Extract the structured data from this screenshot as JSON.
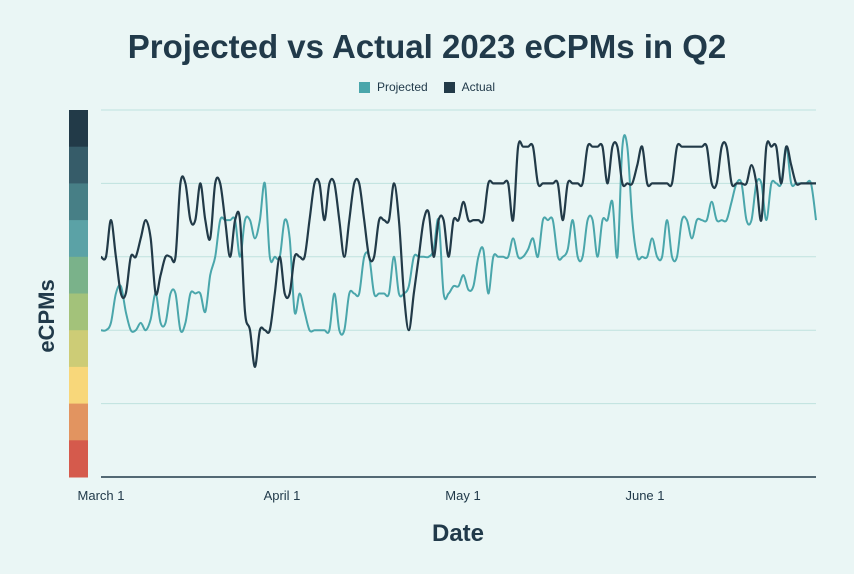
{
  "chart_data": {
    "type": "line",
    "title": "Projected vs Actual 2023 eCPMs in Q2",
    "xlabel": "Date",
    "ylabel": "eCPMs",
    "x_ticks": [
      "March 1",
      "April 1",
      "May 1",
      "June 1"
    ],
    "y_range": [
      0,
      10
    ],
    "legend_position": "top-center",
    "grid": "horizontal",
    "color_scale": [
      "#223a48",
      "#365c69",
      "#477f86",
      "#5ba2a6",
      "#7ab28a",
      "#a3c27a",
      "#cdcc76",
      "#f8d77a",
      "#e29460",
      "#d55a4c"
    ],
    "series": [
      {
        "name": "Projected",
        "color": "#4aa6ab",
        "points": [
          [
            0,
            4
          ],
          [
            1,
            4
          ],
          [
            2,
            4.2
          ],
          [
            3,
            5
          ],
          [
            4,
            5.2
          ],
          [
            5,
            4.5
          ],
          [
            6,
            4
          ],
          [
            7,
            4
          ],
          [
            8,
            4.2
          ],
          [
            9,
            4
          ],
          [
            10,
            4.3
          ],
          [
            11,
            5
          ],
          [
            12,
            4.2
          ],
          [
            13,
            4.2
          ],
          [
            14,
            5
          ],
          [
            15,
            5
          ],
          [
            16,
            4
          ],
          [
            17,
            4.2
          ],
          [
            18,
            5
          ],
          [
            19,
            5
          ],
          [
            20,
            5
          ],
          [
            21,
            4.5
          ],
          [
            22,
            5.5
          ],
          [
            23,
            6
          ],
          [
            24,
            7
          ],
          [
            25,
            7
          ],
          [
            26,
            7
          ],
          [
            27,
            7
          ],
          [
            28,
            6
          ],
          [
            29,
            7
          ],
          [
            30,
            7
          ],
          [
            31,
            6.5
          ],
          [
            32,
            7
          ],
          [
            33,
            8
          ],
          [
            34,
            6
          ],
          [
            35,
            6
          ],
          [
            36,
            6
          ],
          [
            37,
            7
          ],
          [
            38,
            6.5
          ],
          [
            39,
            4.5
          ],
          [
            40,
            5
          ],
          [
            41,
            4.5
          ],
          [
            42,
            4
          ],
          [
            43,
            4
          ],
          [
            44,
            4
          ],
          [
            45,
            4
          ],
          [
            46,
            4
          ],
          [
            47,
            5
          ],
          [
            48,
            4
          ],
          [
            49,
            4
          ],
          [
            50,
            5
          ],
          [
            51,
            5
          ],
          [
            52,
            5
          ],
          [
            53,
            6
          ],
          [
            54,
            6
          ],
          [
            55,
            5
          ],
          [
            56,
            5
          ],
          [
            57,
            5
          ],
          [
            58,
            5
          ],
          [
            59,
            6
          ],
          [
            60,
            5
          ],
          [
            61,
            5
          ],
          [
            62,
            5.2
          ],
          [
            63,
            6
          ],
          [
            64,
            6
          ],
          [
            65,
            6
          ],
          [
            66,
            6
          ],
          [
            67,
            6.2
          ],
          [
            68,
            7
          ],
          [
            69,
            5
          ],
          [
            70,
            5
          ],
          [
            71,
            5.2
          ],
          [
            72,
            5.2
          ],
          [
            73,
            5.5
          ],
          [
            74,
            5.1
          ],
          [
            75,
            5.2
          ],
          [
            76,
            6
          ],
          [
            77,
            6.2
          ],
          [
            78,
            5
          ],
          [
            79,
            6
          ],
          [
            80,
            6
          ],
          [
            81,
            6
          ],
          [
            82,
            6
          ],
          [
            83,
            6.5
          ],
          [
            84,
            6
          ],
          [
            85,
            6
          ],
          [
            86,
            6.2
          ],
          [
            87,
            6.5
          ],
          [
            88,
            6
          ],
          [
            89,
            7
          ],
          [
            90,
            7
          ],
          [
            91,
            7
          ],
          [
            92,
            6
          ],
          [
            93,
            6
          ],
          [
            94,
            6.2
          ],
          [
            95,
            7
          ],
          [
            96,
            6
          ],
          [
            97,
            6
          ],
          [
            98,
            7
          ],
          [
            99,
            7
          ],
          [
            100,
            6
          ],
          [
            101,
            7
          ],
          [
            102,
            7
          ],
          [
            103,
            7.5
          ],
          [
            104,
            6
          ],
          [
            105,
            9
          ],
          [
            106,
            9
          ],
          [
            107,
            7
          ],
          [
            108,
            6
          ],
          [
            109,
            6
          ],
          [
            110,
            6
          ],
          [
            111,
            6.5
          ],
          [
            112,
            6
          ],
          [
            113,
            6
          ],
          [
            114,
            7
          ],
          [
            115,
            6
          ],
          [
            116,
            6
          ],
          [
            117,
            7
          ],
          [
            118,
            7
          ],
          [
            119,
            6.5
          ],
          [
            120,
            7
          ],
          [
            121,
            7
          ],
          [
            122,
            7
          ],
          [
            123,
            7.5
          ],
          [
            124,
            7
          ],
          [
            125,
            7
          ],
          [
            126,
            7
          ],
          [
            127,
            7.5
          ],
          [
            128,
            8
          ],
          [
            129,
            8
          ],
          [
            130,
            7
          ],
          [
            131,
            7
          ],
          [
            132,
            8
          ],
          [
            133,
            8
          ],
          [
            134,
            7
          ],
          [
            135,
            8
          ],
          [
            136,
            8
          ],
          [
            137,
            8
          ],
          [
            138,
            9
          ],
          [
            139,
            8
          ],
          [
            140,
            8
          ],
          [
            141,
            8
          ],
          [
            142,
            8
          ],
          [
            143,
            8
          ],
          [
            144,
            7
          ]
        ]
      },
      {
        "name": "Actual",
        "color": "#223a48",
        "points": [
          [
            0,
            6
          ],
          [
            1,
            6
          ],
          [
            2,
            7
          ],
          [
            3,
            6
          ],
          [
            4,
            5
          ],
          [
            5,
            5
          ],
          [
            6,
            6
          ],
          [
            7,
            6
          ],
          [
            8,
            6.5
          ],
          [
            9,
            7
          ],
          [
            10,
            6.5
          ],
          [
            11,
            5
          ],
          [
            12,
            5.5
          ],
          [
            13,
            6
          ],
          [
            14,
            6
          ],
          [
            15,
            6
          ],
          [
            16,
            8
          ],
          [
            17,
            8
          ],
          [
            18,
            7
          ],
          [
            19,
            7
          ],
          [
            20,
            8
          ],
          [
            21,
            7
          ],
          [
            22,
            6.5
          ],
          [
            23,
            8
          ],
          [
            24,
            8
          ],
          [
            25,
            7
          ],
          [
            26,
            6
          ],
          [
            27,
            7
          ],
          [
            28,
            7
          ],
          [
            29,
            4.5
          ],
          [
            30,
            4
          ],
          [
            31,
            3
          ],
          [
            32,
            4
          ],
          [
            33,
            4
          ],
          [
            34,
            4
          ],
          [
            35,
            5
          ],
          [
            36,
            6
          ],
          [
            37,
            5
          ],
          [
            38,
            5
          ],
          [
            39,
            6
          ],
          [
            40,
            6
          ],
          [
            41,
            6
          ],
          [
            42,
            7
          ],
          [
            43,
            8
          ],
          [
            44,
            8
          ],
          [
            45,
            7
          ],
          [
            46,
            8
          ],
          [
            47,
            8
          ],
          [
            48,
            7
          ],
          [
            49,
            6
          ],
          [
            50,
            7
          ],
          [
            51,
            8
          ],
          [
            52,
            8
          ],
          [
            53,
            7
          ],
          [
            54,
            6
          ],
          [
            55,
            6
          ],
          [
            56,
            7
          ],
          [
            57,
            7
          ],
          [
            58,
            7
          ],
          [
            59,
            8
          ],
          [
            60,
            7
          ],
          [
            61,
            5
          ],
          [
            62,
            4
          ],
          [
            63,
            5
          ],
          [
            64,
            6
          ],
          [
            65,
            7
          ],
          [
            66,
            7.2
          ],
          [
            67,
            6
          ],
          [
            68,
            7
          ],
          [
            69,
            7
          ],
          [
            70,
            6
          ],
          [
            71,
            7
          ],
          [
            72,
            7
          ],
          [
            73,
            7.5
          ],
          [
            74,
            7
          ],
          [
            75,
            7
          ],
          [
            76,
            7
          ],
          [
            77,
            7
          ],
          [
            78,
            8
          ],
          [
            79,
            8
          ],
          [
            80,
            8
          ],
          [
            81,
            8
          ],
          [
            82,
            8
          ],
          [
            83,
            7
          ],
          [
            84,
            9
          ],
          [
            85,
            9
          ],
          [
            86,
            9
          ],
          [
            87,
            9
          ],
          [
            88,
            8
          ],
          [
            89,
            8
          ],
          [
            90,
            8
          ],
          [
            91,
            8
          ],
          [
            92,
            8
          ],
          [
            93,
            7
          ],
          [
            94,
            8
          ],
          [
            95,
            8
          ],
          [
            96,
            8
          ],
          [
            97,
            8
          ],
          [
            98,
            9
          ],
          [
            99,
            9
          ],
          [
            100,
            9
          ],
          [
            101,
            9
          ],
          [
            102,
            8
          ],
          [
            103,
            9
          ],
          [
            104,
            9
          ],
          [
            105,
            8
          ],
          [
            106,
            8
          ],
          [
            107,
            8
          ],
          [
            108,
            8.5
          ],
          [
            109,
            9
          ],
          [
            110,
            8
          ],
          [
            111,
            8
          ],
          [
            112,
            8
          ],
          [
            113,
            8
          ],
          [
            114,
            8
          ],
          [
            115,
            8
          ],
          [
            116,
            9
          ],
          [
            117,
            9
          ],
          [
            118,
            9
          ],
          [
            119,
            9
          ],
          [
            120,
            9
          ],
          [
            121,
            9
          ],
          [
            122,
            9
          ],
          [
            123,
            8
          ],
          [
            124,
            8
          ],
          [
            125,
            9
          ],
          [
            126,
            9
          ],
          [
            127,
            8
          ],
          [
            128,
            8
          ],
          [
            129,
            8
          ],
          [
            130,
            8
          ],
          [
            131,
            8.5
          ],
          [
            132,
            8
          ],
          [
            133,
            7
          ],
          [
            134,
            9
          ],
          [
            135,
            9
          ],
          [
            136,
            9
          ],
          [
            137,
            8
          ],
          [
            138,
            9
          ],
          [
            139,
            8.5
          ],
          [
            140,
            8
          ],
          [
            141,
            8
          ],
          [
            142,
            8
          ],
          [
            143,
            8
          ],
          [
            144,
            8
          ]
        ]
      }
    ]
  }
}
